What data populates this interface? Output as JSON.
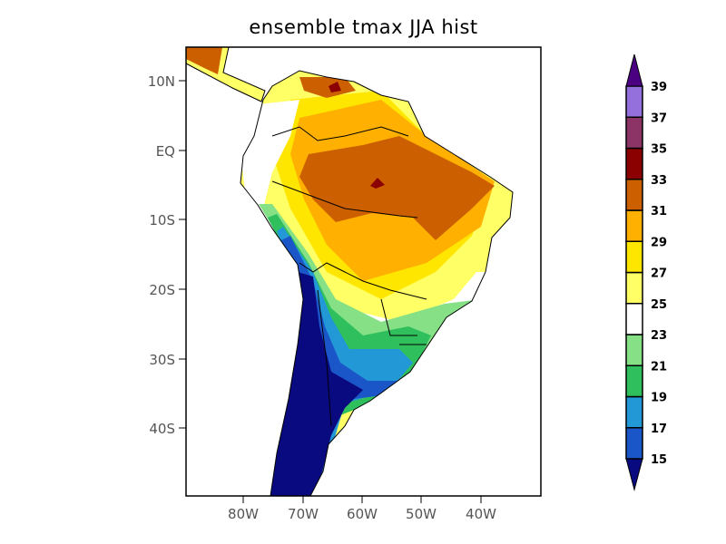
{
  "title": "ensemble tmax JJA hist",
  "lat_labels": [
    "10N",
    "EQ",
    "10S",
    "20S",
    "30S",
    "40S"
  ],
  "lon_labels": [
    "80W",
    "70W",
    "60W",
    "50W",
    "40W"
  ],
  "colorbar": {
    "levels": [
      "15",
      "17",
      "19",
      "21",
      "23",
      "25",
      "27",
      "29",
      "31",
      "33",
      "35",
      "37",
      "39"
    ],
    "colors": [
      "#0a0a80",
      "#1a56c8",
      "#2298d6",
      "#2fbf5c",
      "#86e086",
      "#ffffff",
      "#ffff66",
      "#ffe600",
      "#ffb000",
      "#cc5f00",
      "#8b0000",
      "#8b3465",
      "#9370db",
      "#4b0082"
    ]
  }
}
